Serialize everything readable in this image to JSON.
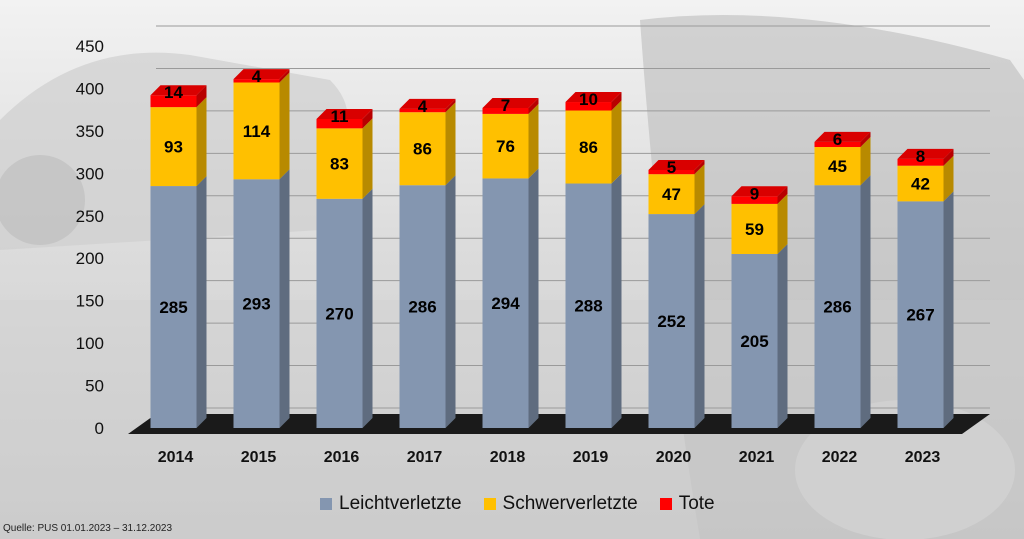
{
  "chart_data": {
    "type": "bar",
    "stacked": true,
    "categories": [
      "2014",
      "2015",
      "2016",
      "2017",
      "2018",
      "2019",
      "2020",
      "2021",
      "2022",
      "2023"
    ],
    "series": [
      {
        "name": "Leichtverletzte",
        "color": "#8496b0",
        "values": [
          285,
          293,
          270,
          286,
          294,
          288,
          252,
          205,
          286,
          267
        ]
      },
      {
        "name": "Schwerverletzte",
        "color": "#ffc000",
        "values": [
          93,
          114,
          83,
          86,
          76,
          86,
          47,
          59,
          45,
          42
        ]
      },
      {
        "name": "Tote",
        "color": "#ff0000",
        "values": [
          14,
          4,
          11,
          4,
          7,
          10,
          5,
          9,
          6,
          8
        ]
      }
    ],
    "y_ticks": [
      "0",
      "50",
      "100",
      "150",
      "200",
      "250",
      "300",
      "350",
      "400",
      "450"
    ],
    "ylim": [
      0,
      450
    ],
    "grid": true,
    "legend_position": "bottom"
  },
  "source": "Quelle: PUS 01.01.2023 – 31.12.2023"
}
